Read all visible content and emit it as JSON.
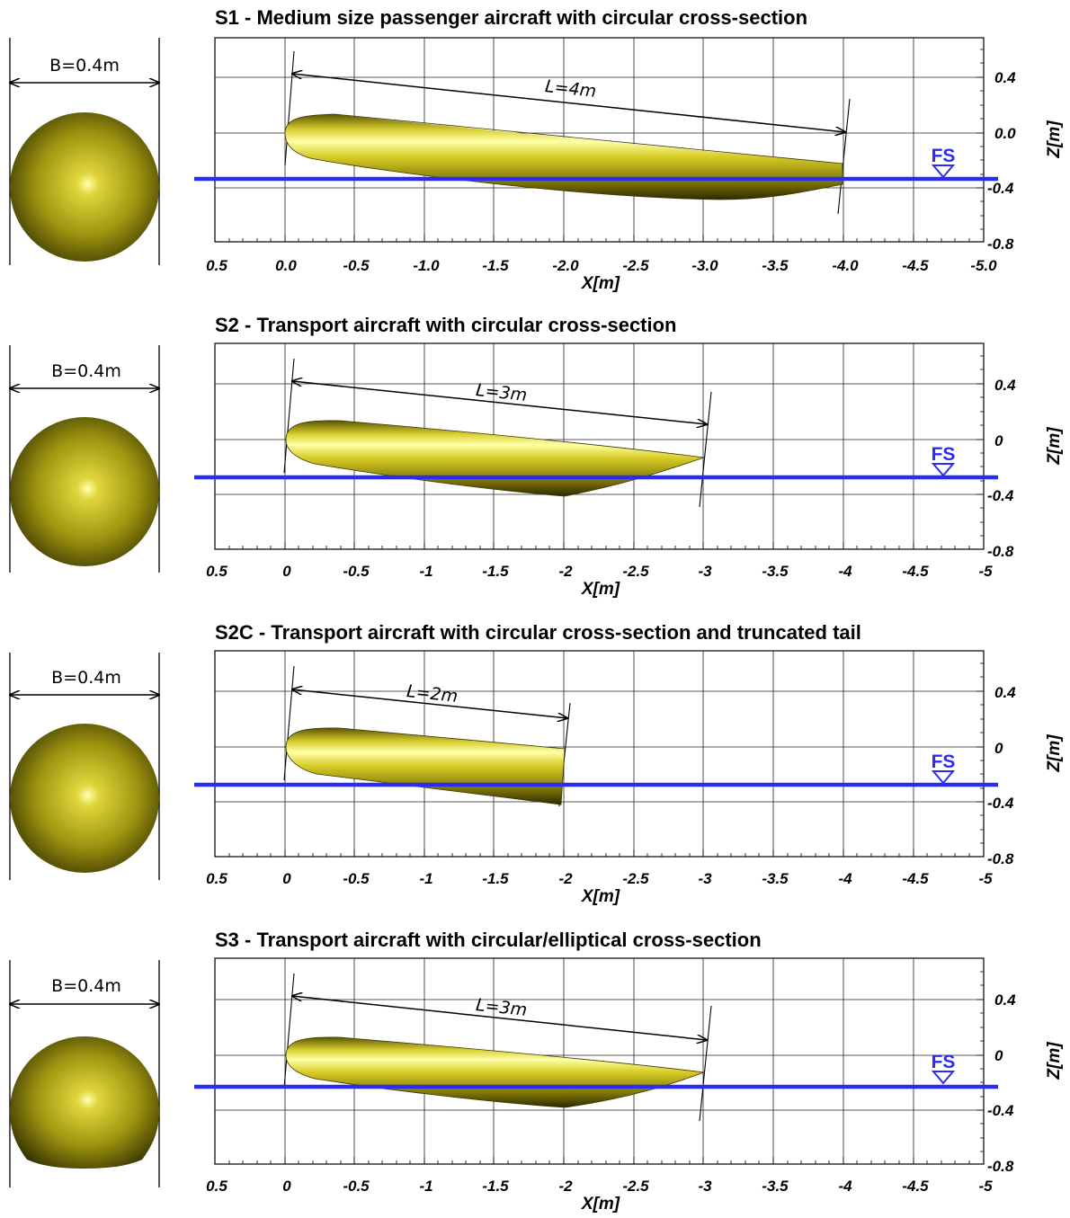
{
  "colors": {
    "waterline": "#2b2bf2",
    "body_light": "#ffff9a",
    "body_mid": "#c8bd1e",
    "body_dark": "#2a2a00",
    "grid": "#1a1a1a"
  },
  "x_ticks_decimal": [
    "0.5",
    "0.0",
    "-0.5",
    "-1.0",
    "-1.5",
    "-2.0",
    "-2.5",
    "-3.0",
    "-3.5",
    "-4.0",
    "-4.5",
    "-5.0"
  ],
  "x_ticks_short": [
    "0.5",
    "0",
    "-0.5",
    "-1",
    "-1.5",
    "-2",
    "-2.5",
    "-3",
    "-3.5",
    "-4",
    "-4.5",
    "-5"
  ],
  "z_ticks_decimal": [
    "0.4",
    "0.0",
    "-0.4",
    "-0.8"
  ],
  "z_ticks_short": [
    "0.4",
    "0",
    "-0.4",
    "-0.8"
  ],
  "x_label": "X[m]",
  "z_label": "Z[m]",
  "fs_label": "FS",
  "panels": [
    {
      "title": "S1 - Medium size passenger aircraft with circular cross-section",
      "beam_label": "B=0.4m",
      "length_label": "L=4m",
      "x_ticks_style": "decimal",
      "z_ticks_style": "decimal",
      "hull_shape": "full",
      "cross_section": "circular",
      "length_m": 4,
      "waterline_z_m": -0.33,
      "trim_drop_m": 0.25
    },
    {
      "title": "S2 - Transport aircraft with circular cross-section",
      "beam_label": "B=0.4m",
      "length_label": "L=3m",
      "x_ticks_style": "short",
      "z_ticks_style": "short",
      "hull_shape": "afterbody",
      "cross_section": "circular",
      "length_m": 3,
      "waterline_z_m": -0.27,
      "trim_drop_m": 0.13
    },
    {
      "title": "S2C - Transport aircraft with circular cross-section and truncated tail",
      "beam_label": "B=0.4m",
      "length_label": "L=2m",
      "x_ticks_style": "short",
      "z_ticks_style": "short",
      "hull_shape": "truncated",
      "cross_section": "circular",
      "length_m": 2,
      "waterline_z_m": -0.27,
      "trim_drop_m": 0.13
    },
    {
      "title": "S3 - Transport aircraft with circular/elliptical cross-section",
      "beam_label": "B=0.4m",
      "length_label": "L=3m",
      "x_ticks_style": "short",
      "z_ticks_style": "short",
      "hull_shape": "afterbody",
      "cross_section": "circular-elliptical",
      "length_m": 3,
      "waterline_z_m": -0.22,
      "trim_drop_m": 0.13
    }
  ]
}
